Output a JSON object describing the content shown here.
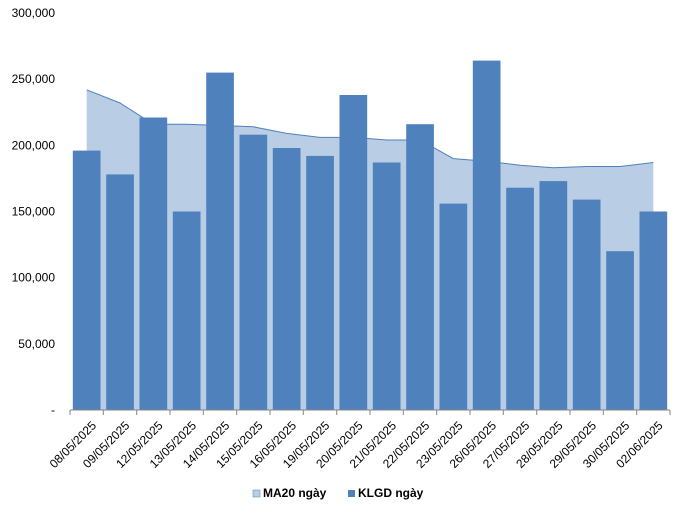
{
  "chart_data": {
    "type": "bar",
    "categories": [
      "08/05/2025",
      "09/05/2025",
      "12/05/2025",
      "13/05/2025",
      "14/05/2025",
      "15/05/2025",
      "16/05/2025",
      "19/05/2025",
      "20/05/2025",
      "21/05/2025",
      "22/05/2025",
      "23/05/2025",
      "26/05/2025",
      "27/05/2025",
      "28/05/2025",
      "29/05/2025",
      "30/05/2025",
      "02/06/2025"
    ],
    "series": [
      {
        "name": "KLGD ngày",
        "kind": "bar",
        "color": "#4F81BD",
        "values": [
          196000,
          178000,
          221000,
          150000,
          255000,
          208000,
          198000,
          192000,
          238000,
          187000,
          216000,
          156000,
          264000,
          168000,
          173000,
          159000,
          120000,
          150000
        ]
      },
      {
        "name": "MA20 ngày",
        "kind": "area",
        "color": "#B9CDE5",
        "line_color": "#4F81BD",
        "values": [
          242000,
          232000,
          216000,
          216000,
          215000,
          214000,
          209000,
          206000,
          206000,
          204000,
          204000,
          190000,
          188000,
          185000,
          183000,
          184000,
          184000,
          187000
        ]
      }
    ],
    "y_ticks": [
      "-",
      "50,000",
      "100,000",
      "150,000",
      "200,000",
      "250,000",
      "300,000"
    ],
    "ylim": [
      0,
      300000
    ],
    "grid": false,
    "legend": "bottom",
    "title": "",
    "xlabel": "",
    "ylabel": ""
  }
}
